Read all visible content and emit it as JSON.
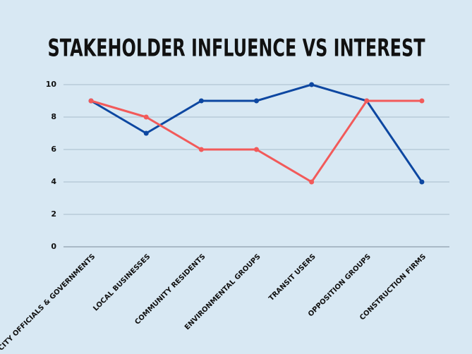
{
  "chart_data": {
    "type": "line",
    "title": "STAKEHOLDER INFLUENCE VS INTEREST",
    "categories": [
      "CITY OFFICIALS & GOVERNMENTS",
      "LOCAL BUSINESSES",
      "COMMUNITY RESIDENTS",
      "ENVIRONMENTAL GROUPS",
      "TRANSIT USERS",
      "OPPOSITION GROUPS",
      "CONSTRUCTION FIRMS"
    ],
    "series": [
      {
        "color": "#0d47a1",
        "values": [
          9,
          7,
          9,
          9,
          10,
          9,
          4
        ]
      },
      {
        "color": "#f25a5a",
        "values": [
          9,
          8,
          6,
          6,
          4,
          9,
          9
        ]
      }
    ],
    "ylim": [
      0,
      10
    ],
    "yticks": [
      0,
      2,
      4,
      6,
      8,
      10
    ],
    "grid": true
  }
}
